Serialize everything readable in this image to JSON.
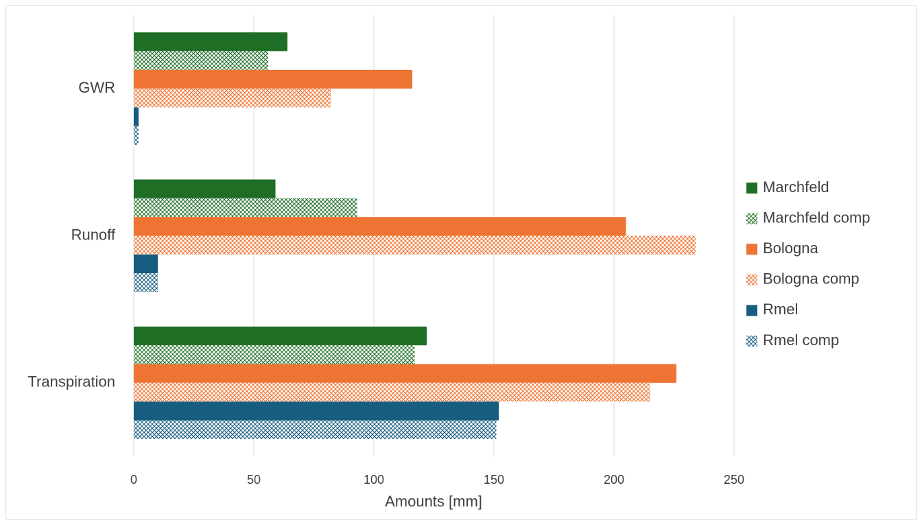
{
  "chart_data": {
    "type": "hbar",
    "x_label": "Amounts [mm]",
    "categories": [
      "GWR",
      "Runoff",
      "Transpiration"
    ],
    "series": [
      {
        "name": "Marchfeld",
        "color": "#1f6e26",
        "pattern": "solid",
        "values": [
          64,
          59,
          122
        ]
      },
      {
        "name": "Marchfeld comp",
        "color": "#1f6e26",
        "pattern": "crosshatch",
        "values": [
          56,
          93,
          117
        ]
      },
      {
        "name": "Bologna",
        "color": "#ed7432",
        "pattern": "solid",
        "values": [
          116,
          205,
          226
        ]
      },
      {
        "name": "Bologna comp",
        "color": "#ed7432",
        "pattern": "crosshatch",
        "values": [
          82,
          234,
          215
        ]
      },
      {
        "name": "Rmel",
        "color": "#165d80",
        "pattern": "solid",
        "values": [
          2,
          10,
          152
        ]
      },
      {
        "name": "Rmel comp",
        "color": "#165d80",
        "pattern": "crosshatch",
        "values": [
          2,
          10,
          151
        ]
      }
    ],
    "xlim": [
      0,
      250
    ],
    "xticks": [
      0,
      50,
      100,
      150,
      200,
      250
    ],
    "grid": true,
    "legend": "right"
  }
}
